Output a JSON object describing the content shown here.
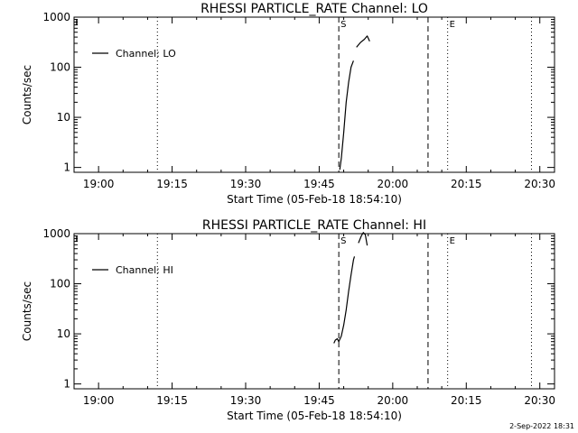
{
  "chart_data": [
    {
      "type": "line",
      "title": "RHESSI PARTICLE_RATE Channel: LO",
      "xlabel": "Start Time (05-Feb-18 18:54:10)",
      "ylabel": "Counts/sec",
      "yscale": "log",
      "ylim": [
        0.8,
        1000
      ],
      "xlim": [
        "18:55",
        "20:33"
      ],
      "x_ticks": [
        "19:00",
        "19:15",
        "19:30",
        "19:45",
        "20:00",
        "20:15",
        "20:30"
      ],
      "y_ticks": [
        "1",
        "10",
        "100",
        "1000"
      ],
      "legend": {
        "entries": [
          "Channel: LO"
        ],
        "position": "top-left"
      },
      "markers": [
        {
          "label": "S",
          "time": "19:49.0",
          "style": "dashed"
        },
        {
          "label": "",
          "time": "20:07.2",
          "style": "dashed"
        },
        {
          "label": "E",
          "time": "20:11.2",
          "style": "dotted"
        },
        {
          "label": "",
          "time": "19:12.0",
          "style": "dotted"
        },
        {
          "label": "",
          "time": "20:28.3",
          "style": "dotted"
        }
      ],
      "series": [
        {
          "name": "Channel: LO",
          "segments": [
            [
              {
                "x": "19:49.2",
                "y": 0.9
              },
              {
                "x": "19:49.5",
                "y": 1.5
              },
              {
                "x": "19:50.0",
                "y": 5
              },
              {
                "x": "19:50.5",
                "y": 20
              },
              {
                "x": "19:51.0",
                "y": 50
              },
              {
                "x": "19:51.5",
                "y": 100
              },
              {
                "x": "19:52.0",
                "y": 135
              }
            ],
            [
              {
                "x": "19:52.6",
                "y": 250
              },
              {
                "x": "19:53.4",
                "y": 310
              },
              {
                "x": "19:54.2",
                "y": 360
              },
              {
                "x": "19:54.8",
                "y": 420
              },
              {
                "x": "19:55.3",
                "y": 330
              }
            ]
          ]
        }
      ]
    },
    {
      "type": "line",
      "title": "RHESSI PARTICLE_RATE Channel: HI",
      "xlabel": "Start Time (05-Feb-18 18:54:10)",
      "ylabel": "Counts/sec",
      "yscale": "log",
      "ylim": [
        0.8,
        1000
      ],
      "xlim": [
        "18:55",
        "20:33"
      ],
      "x_ticks": [
        "19:00",
        "19:15",
        "19:30",
        "19:45",
        "20:00",
        "20:15",
        "20:30"
      ],
      "y_ticks": [
        "1",
        "10",
        "100",
        "1000"
      ],
      "legend": {
        "entries": [
          "Channel: HI"
        ],
        "position": "top-left"
      },
      "markers": [
        {
          "label": "S",
          "time": "19:49.0",
          "style": "dashed"
        },
        {
          "label": "",
          "time": "20:07.2",
          "style": "dashed"
        },
        {
          "label": "E",
          "time": "20:11.2",
          "style": "dotted"
        },
        {
          "label": "",
          "time": "19:12.0",
          "style": "dotted"
        },
        {
          "label": "",
          "time": "20:28.3",
          "style": "dotted"
        }
      ],
      "series": [
        {
          "name": "Channel: HI",
          "segments": [
            [
              {
                "x": "19:48.0",
                "y": 6.5
              },
              {
                "x": "19:48.3",
                "y": 7.5
              },
              {
                "x": "19:48.7",
                "y": 8
              },
              {
                "x": "19:49.0",
                "y": 7
              },
              {
                "x": "19:49.5",
                "y": 9
              },
              {
                "x": "19:50.0",
                "y": 15
              },
              {
                "x": "19:50.5",
                "y": 30
              },
              {
                "x": "19:51.0",
                "y": 70
              },
              {
                "x": "19:51.5",
                "y": 150
              },
              {
                "x": "19:52.0",
                "y": 300
              },
              {
                "x": "19:52.2",
                "y": 350
              }
            ],
            [
              {
                "x": "19:53.0",
                "y": 650
              },
              {
                "x": "19:53.6",
                "y": 900
              },
              {
                "x": "19:54.0",
                "y": 1050
              },
              {
                "x": "19:54.4",
                "y": 950
              },
              {
                "x": "19:54.8",
                "y": 580
              }
            ]
          ]
        }
      ]
    }
  ],
  "footer": {
    "stamp": "2-Sep-2022 18:31"
  }
}
